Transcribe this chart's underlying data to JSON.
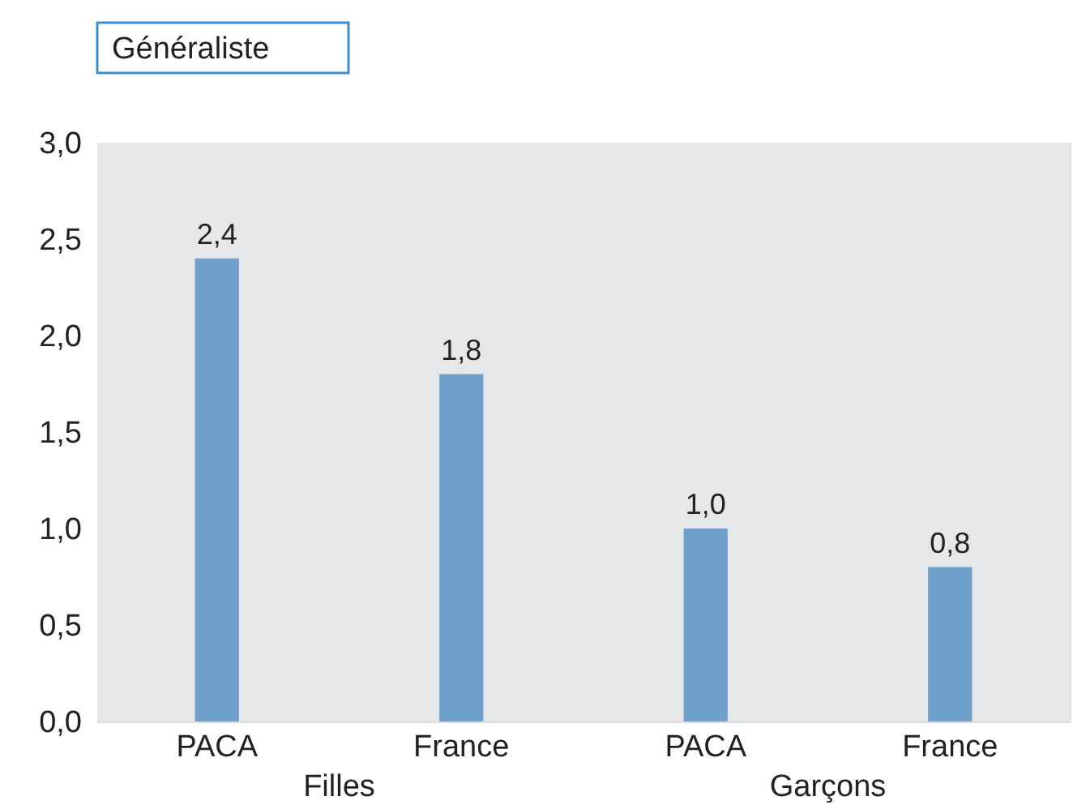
{
  "chart_data": {
    "type": "bar",
    "title": "Généraliste",
    "categories": [
      "PACA",
      "France",
      "PACA",
      "France"
    ],
    "values": [
      2.4,
      1.8,
      1.0,
      0.8
    ],
    "color": "#6f9fcb",
    "ylim": [
      0,
      3.0
    ],
    "yticks": [
      {
        "value": 0,
        "label": "0,0"
      },
      {
        "value": 0.5,
        "label": "0,5"
      },
      {
        "value": 1.0,
        "label": "1,0"
      },
      {
        "value": 1.5,
        "label": "1,5"
      },
      {
        "value": 2.0,
        "label": "2,0"
      },
      {
        "value": 2.5,
        "label": "2,5"
      },
      {
        "value": 3.0,
        "label": "3,0"
      }
    ],
    "value_labels": [
      "2,4",
      "1,8",
      "1,0",
      "0,8"
    ],
    "annotations": [
      "Filles",
      "Garçons"
    ]
  }
}
